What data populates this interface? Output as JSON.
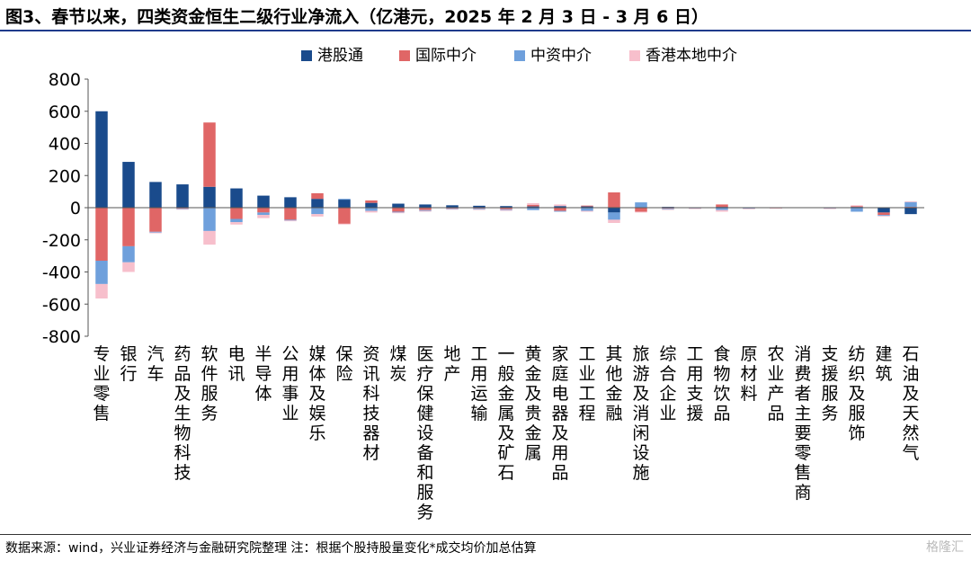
{
  "header": {
    "title": "图3、春节以来，四类资金恒生二级行业净流入（亿港元，2025 年 2 月 3 日 - 3 月 6 日）"
  },
  "footer": {
    "source": "数据来源：wind，兴业证券经济与金融研究院整理    注：根据个股持股量变化*成交均价加总估算",
    "watermark": "格隆汇"
  },
  "colors": {
    "港股通": "#1a4b8c",
    "国际中介": "#e06666",
    "中资中介": "#6fa0dc",
    "香港本地中介": "#f7bfcc"
  },
  "chart_data": {
    "type": "bar",
    "stacked": true,
    "title": "",
    "xlabel": "",
    "ylabel": "",
    "ylim": [
      -800,
      800
    ],
    "yticks": [
      800,
      600,
      400,
      200,
      0,
      -200,
      -400,
      -600,
      -800
    ],
    "legend_position": "top-center",
    "categories": [
      "专业零售",
      "银行",
      "汽车",
      "药品及生物科技",
      "软件服务",
      "电讯",
      "半导体",
      "公用事业",
      "媒体及娱乐",
      "保险",
      "资讯科技器材",
      "煤炭",
      "医疗保健设备和服务",
      "地产",
      "工用运输",
      "一般金属及矿石",
      "黄金及贵金属",
      "家庭电器及用品",
      "工业工程",
      "其他金融",
      "旅游及消闲设施",
      "综合企业",
      "工用支援",
      "食物饮品",
      "原材料",
      "农业产品",
      "消费者主要零售商",
      "支援服务",
      "纺织及服饰",
      "建筑",
      "石油及天然气"
    ],
    "series": [
      {
        "name": "港股通",
        "values": [
          600,
          285,
          160,
          145,
          130,
          120,
          75,
          65,
          55,
          50,
          30,
          25,
          20,
          15,
          12,
          10,
          8,
          10,
          8,
          -30,
          3,
          5,
          2,
          5,
          2,
          1,
          0,
          2,
          5,
          -30,
          -40
        ]
      },
      {
        "name": "国际中介",
        "values": [
          -330,
          -240,
          -150,
          -5,
          400,
          -70,
          -30,
          -75,
          35,
          -100,
          15,
          -25,
          -15,
          -5,
          -5,
          -10,
          10,
          -20,
          5,
          95,
          -25,
          -5,
          -2,
          15,
          -2,
          -1,
          0,
          -2,
          5,
          -15,
          5
        ]
      },
      {
        "name": "中资中介",
        "values": [
          -145,
          -100,
          -5,
          -3,
          -145,
          -20,
          -15,
          -5,
          -40,
          5,
          -20,
          -5,
          -5,
          -3,
          -5,
          -5,
          -15,
          -5,
          -20,
          -45,
          30,
          -5,
          -2,
          -15,
          -3,
          -1,
          0,
          -2,
          -25,
          -5,
          30
        ]
      },
      {
        "name": "香港本地中介",
        "values": [
          -90,
          -60,
          -3,
          -2,
          -85,
          -15,
          -20,
          -3,
          -15,
          -2,
          -10,
          -3,
          -5,
          -2,
          -3,
          -5,
          10,
          10,
          -5,
          -20,
          -5,
          -2,
          -1,
          -10,
          -2,
          -1,
          0,
          -1,
          5,
          -3,
          5
        ]
      }
    ]
  }
}
